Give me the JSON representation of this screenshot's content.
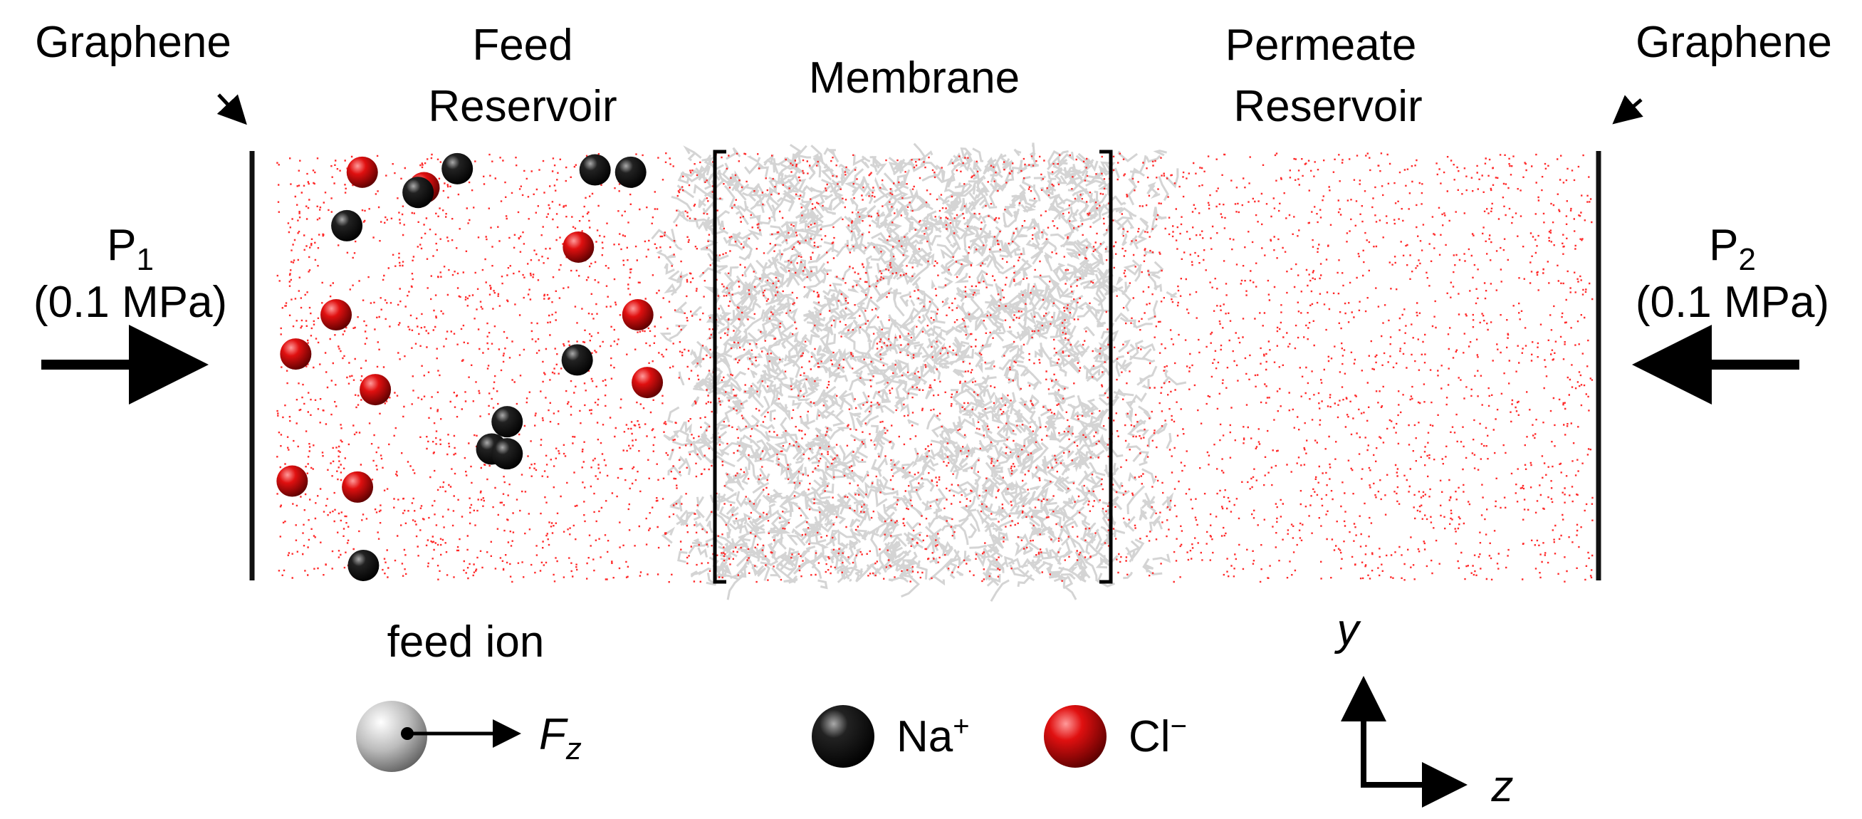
{
  "labels": {
    "left_graphene": "Graphene",
    "feed_reservoir": [
      "Feed",
      "Reservoir"
    ],
    "membrane": "Membrane",
    "permeate_reservoir": [
      "Permeate",
      "Reservoir"
    ],
    "right_graphene": "Graphene",
    "p1": {
      "symbol": "P",
      "subscript": "1",
      "value": "(0.1 MPa)"
    },
    "p2": {
      "symbol": "P",
      "subscript": "2",
      "value": "(0.1 MPa)"
    }
  },
  "legend": {
    "feed_ion": {
      "label": "feed ion",
      "force": "F",
      "force_subscript": "z"
    },
    "na": {
      "label": "Na",
      "superscript": "+"
    },
    "cl": {
      "label": "Cl",
      "superscript": "−"
    }
  },
  "axes": {
    "y": "y",
    "z": "z"
  }
}
